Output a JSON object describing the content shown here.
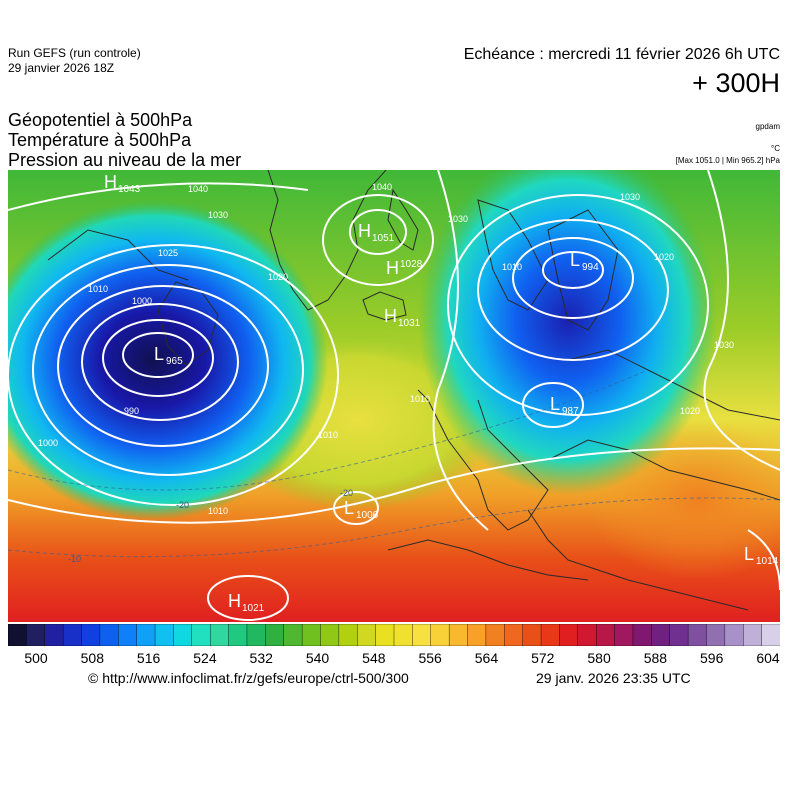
{
  "header": {
    "run": "Run GEFS (run controle)",
    "run_date": "29 janvier 2026 18Z",
    "echeance": "Echéance : mercredi 11 février 2026 6h UTC",
    "lead_time": "+ 300H"
  },
  "fields": {
    "line1": "Géopotentiel à 500hPa",
    "line2": "Température à 500hPa",
    "line3": "Pression au niveau de la mer"
  },
  "units": {
    "geopotential": "gpdam",
    "temperature": "°C",
    "pressure_range": "[Max 1051.0 | Min 965.2] hPa"
  },
  "map": {
    "pressure_systems": [
      {
        "type": "H",
        "value": "1043"
      },
      {
        "type": "H",
        "value": "1051"
      },
      {
        "type": "H",
        "value": "1028"
      },
      {
        "type": "H",
        "value": "1031"
      },
      {
        "type": "L",
        "value": "965"
      },
      {
        "type": "L",
        "value": "994"
      },
      {
        "type": "L",
        "value": "987"
      },
      {
        "type": "L",
        "value": "1006"
      },
      {
        "type": "L",
        "value": "1014"
      },
      {
        "type": "H",
        "value": "1021"
      }
    ],
    "isobar_labels": [
      "1040",
      "1030",
      "1025",
      "1020",
      "1010",
      "1000",
      "990",
      "1040",
      "1030",
      "1020",
      "1010",
      "1010",
      "1000",
      "1010",
      "1030",
      "1020",
      "1010",
      "1030"
    ],
    "temperature_labels": [
      "-20",
      "-20",
      "-10"
    ],
    "colors": {
      "deep_blue": "#1a1aa0",
      "cyan": "#30d0e0",
      "green": "#30b830",
      "yellow": "#e8e040",
      "orange": "#f08a20",
      "red": "#e02020"
    }
  },
  "scale": {
    "min": 500,
    "max": 604,
    "tick_labels": [
      "500",
      "508",
      "516",
      "524",
      "532",
      "540",
      "548",
      "556",
      "564",
      "572",
      "580",
      "588",
      "596",
      "604"
    ],
    "colors": [
      "#101030",
      "#202060",
      "#2020a0",
      "#1830c8",
      "#1040e0",
      "#1060f0",
      "#1080f8",
      "#10a0f8",
      "#10c0f0",
      "#10d8e0",
      "#20e0c0",
      "#30d8a0",
      "#20c880",
      "#20b860",
      "#30b040",
      "#50b830",
      "#70c020",
      "#90c818",
      "#b0d010",
      "#d0d820",
      "#e8e020",
      "#f0e030",
      "#f8e040",
      "#f8d038",
      "#f8b830",
      "#f8a028",
      "#f08020",
      "#f06820",
      "#e85018",
      "#e83818",
      "#e02020",
      "#d01830",
      "#b81848",
      "#a01860",
      "#801870",
      "#702080",
      "#703090",
      "#8050a0",
      "#9070b0",
      "#a890c8",
      "#c0b0d8",
      "#d8d0e8"
    ]
  },
  "footer": {
    "credit": "© http://www.infoclimat.fr/z/gefs/europe/ctrl-500/300",
    "timestamp": "29 janv. 2026 23:35 UTC"
  }
}
